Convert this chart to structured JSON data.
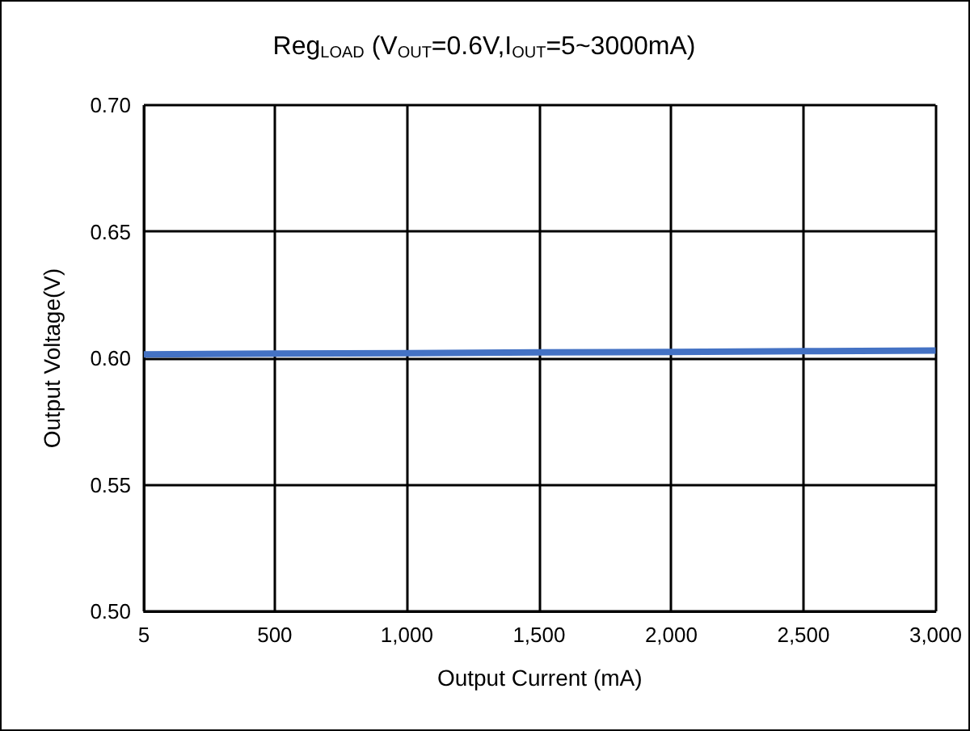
{
  "chart_data": {
    "type": "line",
    "title": "Reg$_{LOAD}$ (V$_{OUT}$=0.6V,I$_{OUT}$=5~3000mA)",
    "xlabel": "Output Current (mA)",
    "ylabel": "Output Voltage(V)",
    "x": [
      5,
      500,
      1000,
      1500,
      2000,
      2500,
      3000
    ],
    "series": [
      {
        "color": "#4472c4",
        "values": [
          0.6015,
          0.6018,
          0.602,
          0.6023,
          0.6025,
          0.6028,
          0.603
        ]
      }
    ],
    "xlim": [
      5,
      3000
    ],
    "xticks": [
      5,
      {
        "value": 500,
        "label": "500"
      },
      {
        "value": 1000,
        "label": "1,000"
      },
      {
        "value": 1500,
        "label": "1,500"
      },
      {
        "value": 2000,
        "label": "2,000"
      },
      {
        "value": 2500,
        "label": "2,500"
      },
      {
        "value": 3000,
        "label": "3,000"
      }
    ],
    "ylim": [
      0.5,
      0.7
    ],
    "yticks": [
      {
        "value": 0.5,
        "label": "0.50"
      },
      {
        "value": 0.55,
        "label": "0.55"
      },
      {
        "value": 0.6,
        "label": "0.60"
      },
      {
        "value": 0.65,
        "label": "0.65"
      },
      {
        "value": 0.7,
        "label": "0.70"
      }
    ],
    "grid": true,
    "marker": "none",
    "line_style": "solid"
  }
}
